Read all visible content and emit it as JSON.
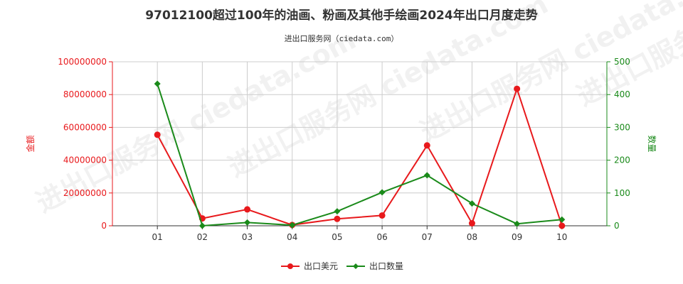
{
  "header": {
    "title": "97012100超过100年的油画、粉画及其他手绘画2024年出口月度走势",
    "subtitle": "进出口服务网（ciedata.com）"
  },
  "watermark": "进出口服务网 ciedata.com",
  "colors": {
    "series_money": "#e8191c",
    "series_qty": "#1a8a1a",
    "grid": "#cccccc",
    "axis": "#333333"
  },
  "chart_data": {
    "type": "line",
    "title": "97012100超过100年的油画、粉画及其他手绘画2024年出口月度走势",
    "subtitle": "进出口服务网（ciedata.com）",
    "categories": [
      "01",
      "02",
      "03",
      "04",
      "05",
      "06",
      "07",
      "08",
      "09",
      "10"
    ],
    "ylabel_left": "金额",
    "ylabel_right": "数量",
    "ylim_left": [
      0,
      100000000
    ],
    "ylim_right": [
      0,
      500
    ],
    "yticks_left": [
      "0",
      "20000000",
      "40000000",
      "60000000",
      "80000000",
      "100000000"
    ],
    "yticks_right": [
      "0",
      "100",
      "200",
      "300",
      "400",
      "500"
    ],
    "grid": true,
    "legend_position": "bottom-center",
    "series": [
      {
        "name": "出口美元",
        "axis": "left",
        "color": "#e8191c",
        "marker": "circle",
        "values": [
          55500000,
          4500000,
          10000000,
          500000,
          4200000,
          6300000,
          49000000,
          1500000,
          83500000,
          0
        ]
      },
      {
        "name": "出口数量",
        "axis": "right",
        "color": "#1a8a1a",
        "marker": "diamond",
        "values": [
          433,
          0,
          10,
          2,
          44,
          102,
          154,
          68,
          6,
          19
        ]
      }
    ]
  }
}
